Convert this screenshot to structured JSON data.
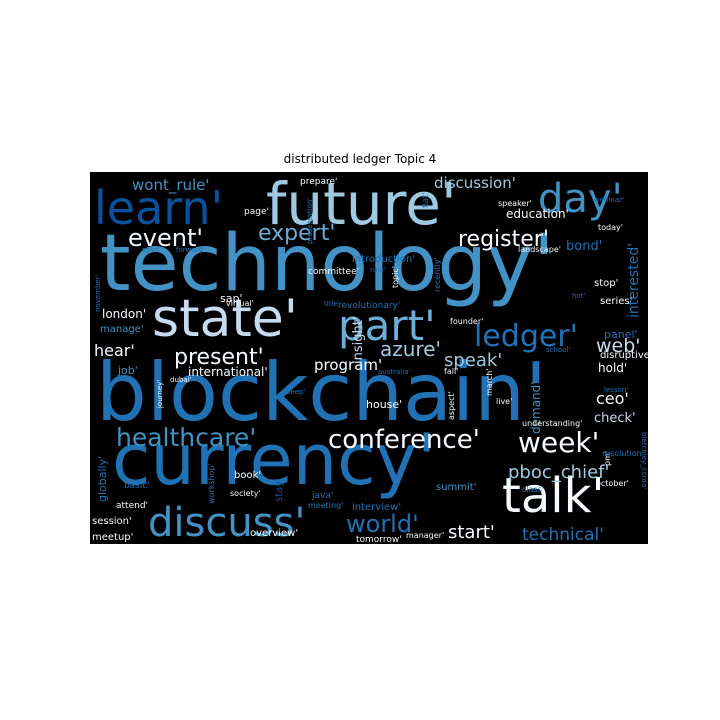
{
  "figure": {
    "title": "distributed ledger Topic 4"
  },
  "chart_data": {
    "type": "wordcloud",
    "title": "distributed ledger Topic 4",
    "background": "#000000",
    "palette": [
      "#08306b",
      "#08519c",
      "#2171b5",
      "#4292c6",
      "#6baed6",
      "#9ecae1",
      "#c6dbef",
      "#f7fbff"
    ],
    "words": [
      {
        "text": "technology'",
        "weight": 1.0,
        "color": "#4292c6"
      },
      {
        "text": "blockchain'",
        "weight": 0.98,
        "color": "#2171b5"
      },
      {
        "text": "currency'",
        "weight": 0.9,
        "color": "#2171b5"
      },
      {
        "text": "future'",
        "weight": 0.75,
        "color": "#9ecae1"
      },
      {
        "text": "state'",
        "weight": 0.68,
        "color": "#c6dbef"
      },
      {
        "text": "learn'",
        "weight": 0.52,
        "color": "#08519c"
      },
      {
        "text": "part'",
        "weight": 0.5,
        "color": "#6baed6"
      },
      {
        "text": "talk'",
        "weight": 0.5,
        "color": "#f7fbff"
      },
      {
        "text": "day'",
        "weight": 0.48,
        "color": "#4292c6"
      },
      {
        "text": "discuss'",
        "weight": 0.46,
        "color": "#4292c6"
      },
      {
        "text": "ledger'",
        "weight": 0.36,
        "color": "#2171b5"
      },
      {
        "text": "conference'",
        "weight": 0.32,
        "color": "#f7fbff"
      },
      {
        "text": "healthcare'",
        "weight": 0.32,
        "color": "#4292c6"
      },
      {
        "text": "world'",
        "weight": 0.3,
        "color": "#2171b5"
      },
      {
        "text": "week'",
        "weight": 0.32,
        "color": "#f7fbff"
      },
      {
        "text": "event'",
        "weight": 0.3,
        "color": "#f7fbff"
      },
      {
        "text": "expert'",
        "weight": 0.28,
        "color": "#6baed6"
      },
      {
        "text": "register'",
        "weight": 0.28,
        "color": "#f7fbff"
      },
      {
        "text": "present'",
        "weight": 0.28,
        "color": "#f7fbff"
      },
      {
        "text": "pboc_chief'",
        "weight": 0.24,
        "color": "#9ecae1"
      },
      {
        "text": "azure'",
        "weight": 0.24,
        "color": "#9ecae1"
      },
      {
        "text": "speak'",
        "weight": 0.22,
        "color": "#9ecae1"
      },
      {
        "text": "start'",
        "weight": 0.22,
        "color": "#f7fbff"
      },
      {
        "text": "technical'",
        "weight": 0.22,
        "color": "#2171b5"
      },
      {
        "text": "wont_rule'",
        "weight": 0.2,
        "color": "#4292c6"
      },
      {
        "text": "discussion'",
        "weight": 0.2,
        "color": "#9ecae1"
      },
      {
        "text": "web'",
        "weight": 0.22,
        "color": "#c6dbef"
      },
      {
        "text": "ceo'",
        "weight": 0.2,
        "color": "#f7fbff"
      },
      {
        "text": "program'",
        "weight": 0.18,
        "color": "#f7fbff"
      },
      {
        "text": "interested'",
        "weight": 0.18,
        "color": "#2171b5"
      },
      {
        "text": "hear'",
        "weight": 0.18,
        "color": "#f7fbff"
      },
      {
        "text": "bond'",
        "weight": 0.16,
        "color": "#2171b5"
      },
      {
        "text": "check'",
        "weight": 0.16,
        "color": "#c6dbef"
      },
      {
        "text": "insight'",
        "weight": 0.15,
        "color": "#c6dbef"
      },
      {
        "text": "education'",
        "weight": 0.14,
        "color": "#f7fbff"
      },
      {
        "text": "demand'",
        "weight": 0.14,
        "color": "#4292c6"
      },
      {
        "text": "london'",
        "weight": 0.14,
        "color": "#f7fbff"
      },
      {
        "text": "international'",
        "weight": 0.14,
        "color": "#f7fbff"
      },
      {
        "text": "hold'",
        "weight": 0.14,
        "color": "#f7fbff"
      },
      {
        "text": "panel'",
        "weight": 0.13,
        "color": "#2171b5"
      },
      {
        "text": "manage'",
        "weight": 0.12,
        "color": "#4292c6"
      },
      {
        "text": "job'",
        "weight": 0.12,
        "color": "#4292c6"
      },
      {
        "text": "globally'",
        "weight": 0.12,
        "color": "#2171b5"
      },
      {
        "text": "house'",
        "weight": 0.12,
        "color": "#f7fbff"
      },
      {
        "text": "disruptive'",
        "weight": 0.12,
        "color": "#f7fbff"
      },
      {
        "text": "introduction'",
        "weight": 0.11,
        "color": "#2171b5"
      },
      {
        "text": "sap'",
        "weight": 0.12,
        "color": "#f7fbff"
      },
      {
        "text": "session'",
        "weight": 0.11,
        "color": "#f7fbff"
      },
      {
        "text": "meetup'",
        "weight": 0.11,
        "color": "#f7fbff"
      },
      {
        "text": "interview'",
        "weight": 0.11,
        "color": "#2171b5"
      },
      {
        "text": "overview'",
        "weight": 0.11,
        "color": "#f7fbff"
      },
      {
        "text": "summit'",
        "weight": 0.11,
        "color": "#4292c6"
      },
      {
        "text": "book'",
        "weight": 0.11,
        "color": "#f7fbff"
      },
      {
        "text": "stop'",
        "weight": 0.1,
        "color": "#f7fbff"
      },
      {
        "text": "series'",
        "weight": 0.1,
        "color": "#f7fbff"
      },
      {
        "text": "committee'",
        "weight": 0.1,
        "color": "#f7fbff"
      },
      {
        "text": "revolutionary'",
        "weight": 0.1,
        "color": "#2171b5"
      },
      {
        "text": "prepare'",
        "weight": 0.1,
        "color": "#f7fbff"
      },
      {
        "text": "page'",
        "weight": 0.1,
        "color": "#f7fbff"
      },
      {
        "text": "stay'",
        "weight": 0.1,
        "color": "#08519c"
      },
      {
        "text": "java'",
        "weight": 0.1,
        "color": "#2171b5"
      },
      {
        "text": "tomorrow'",
        "weight": 0.1,
        "color": "#f7fbff"
      },
      {
        "text": "workshop'",
        "weight": 0.09,
        "color": "#2171b5"
      },
      {
        "text": "basic'",
        "weight": 0.09,
        "color": "#2171b5"
      },
      {
        "text": "attend'",
        "weight": 0.09,
        "color": "#f7fbff"
      },
      {
        "text": "society'",
        "weight": 0.09,
        "color": "#f7fbff"
      },
      {
        "text": "meeting'",
        "weight": 0.08,
        "color": "#2171b5"
      },
      {
        "text": "class'",
        "weight": 0.09,
        "color": "#2171b5"
      },
      {
        "text": "manager'",
        "weight": 0.08,
        "color": "#f7fbff"
      },
      {
        "text": "topic'",
        "weight": 0.08,
        "color": "#f7fbff"
      },
      {
        "text": "recently'",
        "weight": 0.08,
        "color": "#2171b5"
      },
      {
        "text": "fiat'",
        "weight": 0.08,
        "color": "#2171b5"
      },
      {
        "text": "founder'",
        "weight": 0.08,
        "color": "#f7fbff"
      },
      {
        "text": "fall'",
        "weight": 0.08,
        "color": "#f7fbff"
      },
      {
        "text": "understanding'",
        "weight": 0.08,
        "color": "#f7fbff"
      },
      {
        "text": "aspect'",
        "weight": 0.08,
        "color": "#f7fbff"
      },
      {
        "text": "march'",
        "weight": 0.08,
        "color": "#f7fbff"
      },
      {
        "text": "live'",
        "weight": 0.08,
        "color": "#f7fbff"
      },
      {
        "text": "pm'",
        "weight": 0.08,
        "color": "#f7fbff"
      },
      {
        "text": "october'",
        "weight": 0.08,
        "color": "#f7fbff"
      },
      {
        "text": "resolution'",
        "weight": 0.08,
        "color": "#2171b5"
      },
      {
        "text": "today'",
        "weight": 0.08,
        "color": "#f7fbff"
      },
      {
        "text": "speaker'",
        "weight": 0.08,
        "color": "#f7fbff"
      },
      {
        "text": "webinar'",
        "weight": 0.08,
        "color": "#2171b5"
      },
      {
        "text": "landscape'",
        "weight": 0.08,
        "color": "#f7fbff"
      },
      {
        "text": "hot'",
        "weight": 0.07,
        "color": "#2171b5"
      },
      {
        "text": "lesson'",
        "weight": 0.07,
        "color": "#2171b5"
      },
      {
        "text": "school'",
        "weight": 0.07,
        "color": "#2171b5"
      },
      {
        "text": "rule'",
        "weight": 0.07,
        "color": "#2171b5"
      },
      {
        "text": "presentation'",
        "weight": 0.07,
        "color": "#2171b5"
      },
      {
        "text": "miss'",
        "weight": 0.07,
        "color": "#2171b5"
      },
      {
        "text": "forward'",
        "weight": 0.07,
        "color": "#2171b5"
      },
      {
        "text": "virtual'",
        "weight": 0.07,
        "color": "#f7fbff"
      },
      {
        "text": "title'",
        "weight": 0.07,
        "color": "#2171b5"
      },
      {
        "text": "dubai'",
        "weight": 0.07,
        "color": "#f7fbff"
      },
      {
        "text": "deep'",
        "weight": 0.07,
        "color": "#2171b5"
      },
      {
        "text": "australia'",
        "weight": 0.07,
        "color": "#2171b5"
      },
      {
        "text": "november'",
        "weight": 0.07,
        "color": "#2171b5"
      },
      {
        "text": "journey'",
        "weight": 0.07,
        "color": "#f7fbff"
      },
      {
        "text": "bletchley_corda'",
        "weight": 0.07,
        "color": "#2171b5"
      }
    ]
  }
}
